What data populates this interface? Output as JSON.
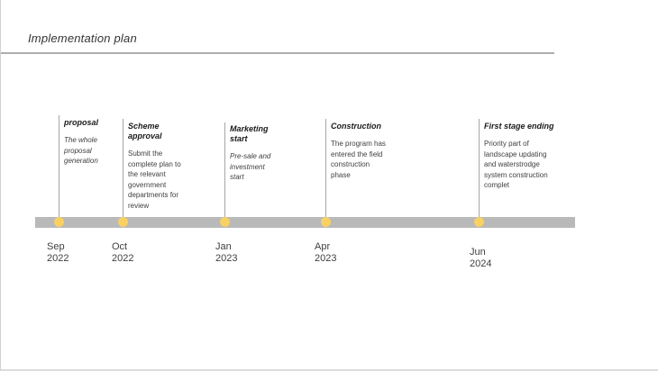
{
  "page": {
    "title": "Implementation plan"
  },
  "timeline": {
    "bar_color": "#b9b9b9",
    "dot_color": "#f8d164",
    "milestones": [
      {
        "title": "proposal",
        "description": "The whole\nproposal\ngeneration",
        "date": "Sep\n2022"
      },
      {
        "title": "Scheme approval",
        "description": "Submit the\ncomplete plan to\nthe relevant\ngovernment\ndepartments for\nreview",
        "date": "Oct\n2022"
      },
      {
        "title": "Marketing start",
        "description": "Pre-sale and\ninvestment\nstart",
        "date": "Jan\n2023"
      },
      {
        "title": "Construction",
        "description": "The program has\nentered the field\nconstruction\nphase",
        "date": "Apr\n2023"
      },
      {
        "title": "First stage ending",
        "description": "Priority part of\nlandscape updating\nand waterstrodge\nsystem construction\ncomplet",
        "date": "Jun\n2024"
      }
    ]
  }
}
